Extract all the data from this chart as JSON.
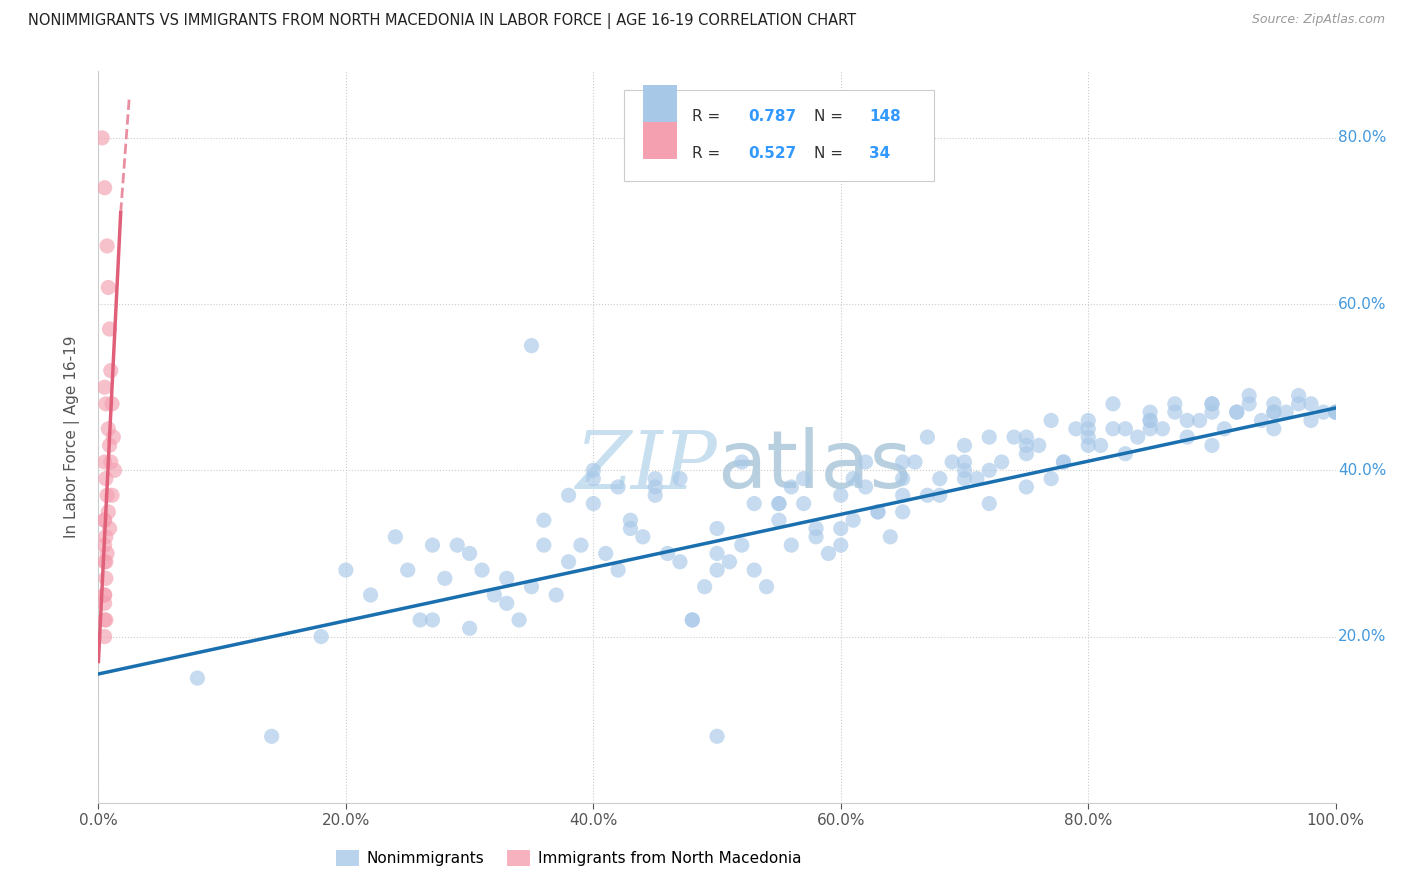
{
  "title": "NONIMMIGRANTS VS IMMIGRANTS FROM NORTH MACEDONIA IN LABOR FORCE | AGE 16-19 CORRELATION CHART",
  "source": "Source: ZipAtlas.com",
  "ylabel": "In Labor Force | Age 16-19",
  "blue_R": "0.787",
  "blue_N": "148",
  "pink_R": "0.527",
  "pink_N": "34",
  "blue_scatter_color": "#a8c8e8",
  "blue_line_color": "#1a6faf",
  "pink_scatter_color": "#f4a0b0",
  "pink_line_color": "#e0607a",
  "bg_color": "#ffffff",
  "grid_color": "#cccccc",
  "watermark_color": "#c8dff0",
  "legend_label_blue": "Nonimmigrants",
  "legend_label_pink": "Immigrants from North Macedonia",
  "label_color": "#555555",
  "right_tick_color": "#4499dd",
  "legend_text_color": "#333333",
  "legend_value_color": "#3399ff",
  "blue_scatter_x": [
    0.08,
    0.14,
    0.18,
    0.2,
    0.22,
    0.24,
    0.25,
    0.26,
    0.27,
    0.28,
    0.29,
    0.3,
    0.31,
    0.32,
    0.33,
    0.34,
    0.35,
    0.36,
    0.37,
    0.38,
    0.39,
    0.4,
    0.41,
    0.42,
    0.43,
    0.44,
    0.45,
    0.46,
    0.47,
    0.48,
    0.49,
    0.5,
    0.51,
    0.52,
    0.53,
    0.54,
    0.55,
    0.56,
    0.57,
    0.58,
    0.59,
    0.6,
    0.61,
    0.62,
    0.63,
    0.64,
    0.65,
    0.66,
    0.67,
    0.68,
    0.69,
    0.7,
    0.71,
    0.72,
    0.73,
    0.74,
    0.75,
    0.76,
    0.77,
    0.78,
    0.79,
    0.8,
    0.81,
    0.82,
    0.83,
    0.84,
    0.85,
    0.86,
    0.87,
    0.88,
    0.89,
    0.9,
    0.91,
    0.92,
    0.93,
    0.94,
    0.95,
    0.96,
    0.97,
    0.98,
    0.99,
    1.0,
    0.27,
    0.3,
    0.33,
    0.36,
    0.38,
    0.4,
    0.43,
    0.45,
    0.48,
    0.5,
    0.53,
    0.56,
    0.58,
    0.61,
    0.63,
    0.65,
    0.68,
    0.7,
    0.72,
    0.75,
    0.78,
    0.8,
    0.83,
    0.85,
    0.88,
    0.9,
    0.93,
    0.95,
    0.98,
    1.0,
    0.35,
    0.4,
    0.45,
    0.5,
    0.55,
    0.6,
    0.65,
    0.7,
    0.75,
    0.8,
    0.85,
    0.9,
    0.95,
    1.0,
    0.42,
    0.47,
    0.52,
    0.57,
    0.62,
    0.67,
    0.72,
    0.77,
    0.82,
    0.87,
    0.92,
    0.97,
    0.5,
    0.55,
    0.6,
    0.65,
    0.7,
    0.75,
    0.8,
    0.85,
    0.9,
    0.95
  ],
  "blue_scatter_y": [
    0.15,
    0.08,
    0.2,
    0.28,
    0.25,
    0.32,
    0.28,
    0.22,
    0.31,
    0.27,
    0.31,
    0.3,
    0.28,
    0.25,
    0.24,
    0.22,
    0.55,
    0.31,
    0.25,
    0.29,
    0.31,
    0.36,
    0.3,
    0.28,
    0.34,
    0.32,
    0.37,
    0.3,
    0.29,
    0.22,
    0.26,
    0.33,
    0.29,
    0.31,
    0.28,
    0.26,
    0.34,
    0.31,
    0.36,
    0.33,
    0.3,
    0.37,
    0.34,
    0.38,
    0.35,
    0.32,
    0.39,
    0.41,
    0.37,
    0.39,
    0.41,
    0.43,
    0.39,
    0.36,
    0.41,
    0.44,
    0.42,
    0.43,
    0.39,
    0.41,
    0.45,
    0.46,
    0.43,
    0.45,
    0.42,
    0.44,
    0.46,
    0.45,
    0.47,
    0.44,
    0.46,
    0.48,
    0.45,
    0.47,
    0.49,
    0.46,
    0.48,
    0.47,
    0.49,
    0.48,
    0.47,
    0.47,
    0.22,
    0.21,
    0.27,
    0.34,
    0.37,
    0.39,
    0.33,
    0.38,
    0.22,
    0.28,
    0.36,
    0.38,
    0.32,
    0.39,
    0.35,
    0.41,
    0.37,
    0.41,
    0.4,
    0.44,
    0.41,
    0.45,
    0.45,
    0.47,
    0.46,
    0.48,
    0.48,
    0.47,
    0.46,
    0.47,
    0.26,
    0.4,
    0.39,
    0.3,
    0.36,
    0.31,
    0.35,
    0.39,
    0.38,
    0.43,
    0.45,
    0.43,
    0.45,
    0.47,
    0.38,
    0.39,
    0.41,
    0.39,
    0.41,
    0.44,
    0.44,
    0.46,
    0.48,
    0.48,
    0.47,
    0.48,
    0.08,
    0.36,
    0.33,
    0.37,
    0.4,
    0.43,
    0.44,
    0.46,
    0.47,
    0.47
  ],
  "pink_scatter_x": [
    0.003,
    0.005,
    0.007,
    0.008,
    0.009,
    0.01,
    0.011,
    0.012,
    0.013,
    0.005,
    0.006,
    0.008,
    0.009,
    0.01,
    0.011,
    0.005,
    0.006,
    0.007,
    0.008,
    0.009,
    0.005,
    0.006,
    0.007,
    0.005,
    0.006,
    0.005,
    0.006,
    0.005,
    0.005,
    0.006,
    0.005,
    0.005,
    0.005,
    0.005
  ],
  "pink_scatter_y": [
    0.8,
    0.74,
    0.67,
    0.62,
    0.57,
    0.52,
    0.48,
    0.44,
    0.4,
    0.5,
    0.48,
    0.45,
    0.43,
    0.41,
    0.37,
    0.41,
    0.39,
    0.37,
    0.35,
    0.33,
    0.34,
    0.32,
    0.3,
    0.31,
    0.29,
    0.29,
    0.27,
    0.25,
    0.24,
    0.22,
    0.22,
    0.2,
    0.25,
    0.34
  ],
  "xlim": [
    0.0,
    1.0
  ],
  "ylim": [
    0.0,
    0.88
  ],
  "blue_reg": [
    0.0,
    0.155,
    1.0,
    0.475
  ],
  "pink_reg_solid": [
    0.0,
    0.17,
    0.018,
    0.71
  ],
  "pink_reg_dashed": [
    0.0,
    0.17,
    0.016,
    0.6
  ]
}
